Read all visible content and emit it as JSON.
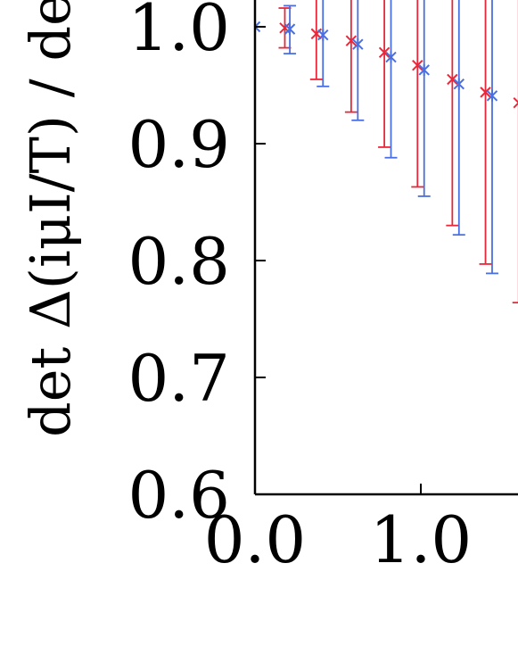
{
  "chart_data": {
    "type": "scatter",
    "ylabel": "det Δ(iμI/T) / de",
    "ylim": [
      0.6,
      1.0
    ],
    "xlim": [
      0.0,
      1.6
    ],
    "x_ticks": [
      0.0,
      1.0
    ],
    "x_tick_labels": [
      "0.0",
      "1.0"
    ],
    "y_ticks": [
      0.6,
      0.7,
      0.8,
      0.9,
      1.0
    ],
    "y_tick_labels": [
      "0.6",
      "0.7",
      "0.8",
      "0.9",
      "1.0"
    ],
    "grid": false,
    "series": [
      {
        "color": "#e8283a",
        "marker": "x",
        "points": [
          {
            "x": 0.18,
            "y": 0.999,
            "lo": 0.982,
            "hi": 1.016
          },
          {
            "x": 0.37,
            "y": 0.994,
            "lo": 0.955,
            "hi": 1.03
          },
          {
            "x": 0.58,
            "y": 0.988,
            "lo": 0.927,
            "hi": 1.03
          },
          {
            "x": 0.78,
            "y": 0.978,
            "lo": 0.897,
            "hi": 1.03
          },
          {
            "x": 0.98,
            "y": 0.967,
            "lo": 0.863,
            "hi": 1.03
          },
          {
            "x": 1.19,
            "y": 0.955,
            "lo": 0.83,
            "hi": 1.03
          },
          {
            "x": 1.39,
            "y": 0.944,
            "lo": 0.797,
            "hi": 1.03
          },
          {
            "x": 1.59,
            "y": 0.935,
            "lo": 0.764,
            "hi": 1.03
          }
        ]
      },
      {
        "color": "#4a6fe0",
        "marker": "asterisk",
        "points": [
          {
            "x": 0.0,
            "y": 1.0,
            "lo": 1.0,
            "hi": 1.0
          },
          {
            "x": 0.21,
            "y": 0.998,
            "lo": 0.977,
            "hi": 1.018
          },
          {
            "x": 0.41,
            "y": 0.993,
            "lo": 0.949,
            "hi": 1.03
          },
          {
            "x": 0.62,
            "y": 0.985,
            "lo": 0.92,
            "hi": 1.03
          },
          {
            "x": 0.82,
            "y": 0.974,
            "lo": 0.888,
            "hi": 1.03
          },
          {
            "x": 1.02,
            "y": 0.963,
            "lo": 0.855,
            "hi": 1.03
          },
          {
            "x": 1.23,
            "y": 0.951,
            "lo": 0.822,
            "hi": 1.03
          },
          {
            "x": 1.43,
            "y": 0.941,
            "lo": 0.789,
            "hi": 1.03
          }
        ]
      }
    ]
  }
}
